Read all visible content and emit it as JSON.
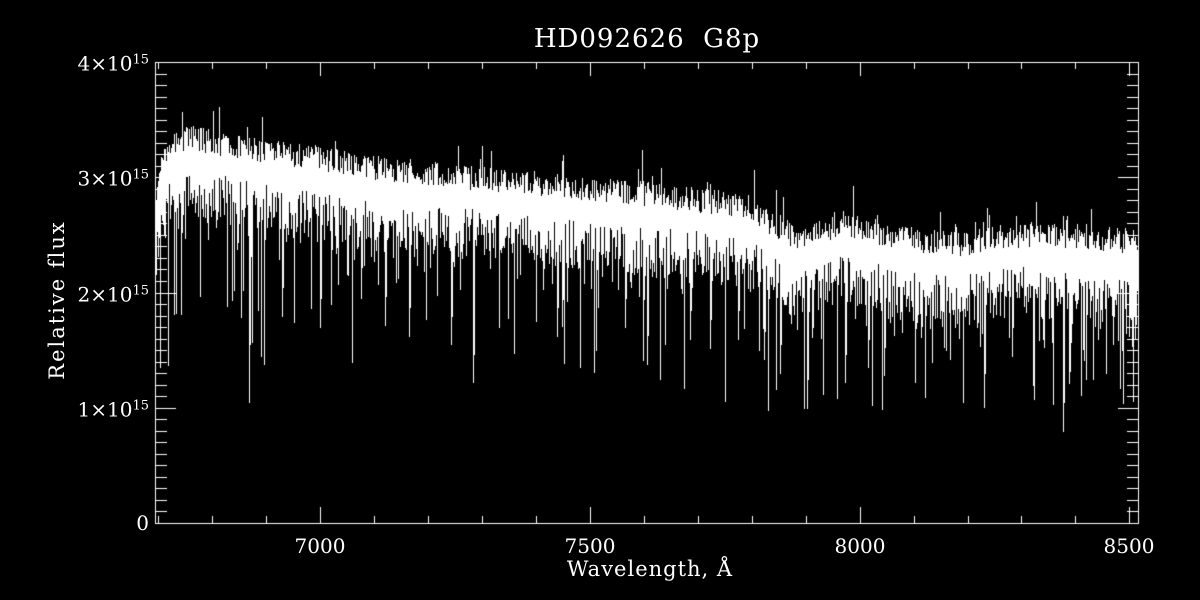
{
  "page": {
    "background": "#000000",
    "foreground": "#ffffff"
  },
  "chart_data": {
    "type": "line",
    "title": "HD092626  G8p",
    "xlabel": "Wavelength, Å",
    "ylabel": "Relative flux",
    "line_color": "#ffffff",
    "axis_color": "#ffffff",
    "background_color": "#000000",
    "legend": "none",
    "grid": false,
    "xlim": [
      6694,
      8516
    ],
    "ylim": [
      0,
      4000000000000000.0
    ],
    "x_ticks": [
      {
        "value": 7000,
        "label": "7000"
      },
      {
        "value": 7500,
        "label": "7500"
      },
      {
        "value": 8000,
        "label": "8000"
      },
      {
        "value": 8500,
        "label": "8500"
      }
    ],
    "x_minor_start": 6700,
    "x_minor_step": 100,
    "y_ticks": [
      {
        "value": 0,
        "main": "0",
        "sup": ""
      },
      {
        "value": 1000000000000000.0,
        "main": "1×10",
        "sup": "15"
      },
      {
        "value": 2000000000000000.0,
        "main": "2×10",
        "sup": "15"
      },
      {
        "value": 3000000000000000.0,
        "main": "3×10",
        "sup": "15"
      },
      {
        "value": 4000000000000000.0,
        "main": "4×10",
        "sup": "15"
      }
    ],
    "y_minor_step": 100000000000000.0,
    "continuum_anchors": [
      [
        6694,
        2900000000000000.0
      ],
      [
        6712,
        3260000000000000.0
      ],
      [
        6760,
        3400000000000000.0
      ],
      [
        6800,
        3340000000000000.0
      ],
      [
        6900,
        3270000000000000.0
      ],
      [
        7000,
        3200000000000000.0
      ],
      [
        7100,
        3120000000000000.0
      ],
      [
        7200,
        3070000000000000.0
      ],
      [
        7300,
        3030000000000000.0
      ],
      [
        7400,
        2990000000000000.0
      ],
      [
        7500,
        2940000000000000.0
      ],
      [
        7600,
        2900000000000000.0
      ],
      [
        7700,
        2840000000000000.0
      ],
      [
        7790,
        2790000000000000.0
      ],
      [
        7845,
        2600000000000000.0
      ],
      [
        7885,
        2520000000000000.0
      ],
      [
        7925,
        2560000000000000.0
      ],
      [
        7965,
        2640000000000000.0
      ],
      [
        8005,
        2600000000000000.0
      ],
      [
        8065,
        2520000000000000.0
      ],
      [
        8125,
        2480000000000000.0
      ],
      [
        8185,
        2460000000000000.0
      ],
      [
        8265,
        2520000000000000.0
      ],
      [
        8345,
        2540000000000000.0
      ],
      [
        8425,
        2520000000000000.0
      ],
      [
        8516,
        2470000000000000.0
      ]
    ],
    "absorption_lines": [
      [
        6868,
        1050000000000000.0
      ],
      [
        6890,
        1450000000000000.0
      ],
      [
        6930,
        1800000000000000.0
      ],
      [
        7000,
        1700000000000000.0
      ],
      [
        7060,
        1400000000000000.0
      ],
      [
        7120,
        1720000000000000.0
      ],
      [
        7165,
        1620000000000000.0
      ],
      [
        7242,
        1550000000000000.0
      ],
      [
        7283,
        1220000000000000.0
      ],
      [
        7332,
        1700000000000000.0
      ],
      [
        7400,
        1750000000000000.0
      ],
      [
        7440,
        1620000000000000.0
      ],
      [
        7482,
        1350000000000000.0
      ],
      [
        7512,
        1500000000000000.0
      ],
      [
        7565,
        1700000000000000.0
      ],
      [
        7605,
        1380000000000000.0
      ],
      [
        7640,
        1550000000000000.0
      ],
      [
        7685,
        1600000000000000.0
      ],
      [
        7722,
        1520000000000000.0
      ],
      [
        7775,
        1600000000000000.0
      ],
      [
        7822,
        1420000000000000.0
      ],
      [
        7852,
        1300000000000000.0
      ],
      [
        7902,
        1000000000000000.0
      ],
      [
        7932,
        1120000000000000.0
      ],
      [
        7972,
        1220000000000000.0
      ],
      [
        8015,
        1350000000000000.0
      ],
      [
        8045,
        1280000000000000.0
      ],
      [
        8102,
        1220000000000000.0
      ],
      [
        8135,
        1400000000000000.0
      ],
      [
        8192,
        1050000000000000.0
      ],
      [
        8232,
        1300000000000000.0
      ],
      [
        8282,
        1450000000000000.0
      ],
      [
        8322,
        1200000000000000.0
      ],
      [
        8377,
        800000000000000.0
      ],
      [
        8390,
        1320000000000000.0
      ],
      [
        8432,
        1400000000000000.0
      ],
      [
        8470,
        1550000000000000.0
      ],
      [
        8500,
        1620000000000000.0
      ]
    ],
    "emission_spikes": [
      [
        7597,
        3240000000000000.0
      ],
      [
        7632,
        3080000000000000.0
      ]
    ],
    "noise": {
      "seed": 1234,
      "top_base": -150000000000000.0,
      "top_span": 220000000000000.0,
      "top_spike_prob": 0.05,
      "top_spike_min": 120000000000000.0,
      "top_spike_span": 150000000000000.0,
      "depth_base": 300000000000000.0,
      "depth_span": 450000000000000.0,
      "depth_tail_prob": 0.3,
      "depth_tail_span": 350000000000000.0,
      "deep_prob": 0.055,
      "deep_min": 450000000000000.0,
      "deep_span": 850000000000000.0,
      "floor": 950000000000000.0
    }
  }
}
